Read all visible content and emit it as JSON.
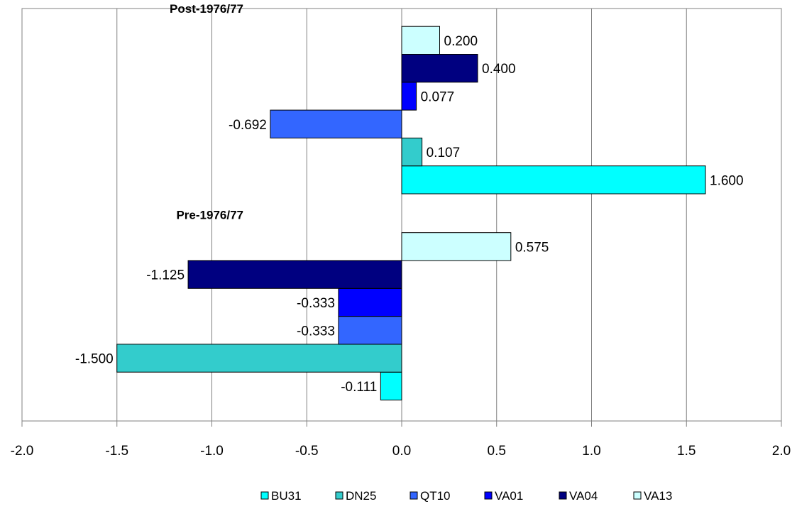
{
  "chart_data": {
    "type": "bar",
    "orientation": "horizontal",
    "groups": [
      "Pre-1976/77",
      "Post-1976/77"
    ],
    "series": [
      {
        "name": "BU31",
        "color": "#00FFFF",
        "values": [
          -0.111,
          1.6
        ],
        "labels": [
          "-0.111",
          "1.600"
        ]
      },
      {
        "name": "DN25",
        "color": "#33CCCC",
        "values": [
          -1.5,
          0.107
        ],
        "labels": [
          "-1.500",
          "0.107"
        ]
      },
      {
        "name": "QT10",
        "color": "#3366FF",
        "values": [
          -0.333,
          -0.692
        ],
        "labels": [
          "-0.333",
          "-0.692"
        ]
      },
      {
        "name": "VA01",
        "color": "#0000FF",
        "values": [
          -0.333,
          0.077
        ],
        "labels": [
          "-0.333",
          "0.077"
        ]
      },
      {
        "name": "VA04",
        "color": "#000080",
        "values": [
          -1.125,
          0.4
        ],
        "labels": [
          "-1.125",
          "0.400"
        ]
      },
      {
        "name": "VA13",
        "color": "#CCFFFF",
        "values": [
          0.575,
          0.2
        ],
        "labels": [
          "0.575",
          "0.200"
        ]
      }
    ],
    "xlim": [
      -2.0,
      2.0
    ],
    "xticks": [
      -2.0,
      -1.5,
      -1.0,
      -0.5,
      0.0,
      0.5,
      1.0,
      1.5,
      2.0
    ],
    "xtick_labels": [
      "-2.0",
      "-1.5",
      "-1.0",
      "-0.5",
      "0.0",
      "0.5",
      "1.0",
      "1.5",
      "2.0"
    ],
    "grid": "vertical",
    "legend": "bottom"
  }
}
